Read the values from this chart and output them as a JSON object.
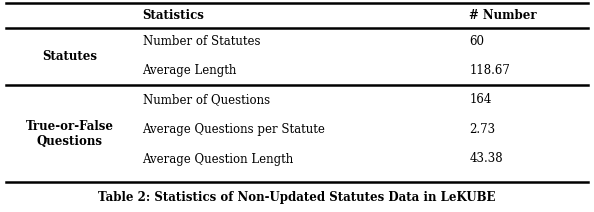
{
  "caption": "Table 2: Statistics of Non-Updated Statutes Data in LeKUBE",
  "col_headers": [
    "",
    "Statistics",
    "# Number"
  ],
  "sections": [
    {
      "row_label": "Statutes",
      "rows": [
        [
          "Number of Statutes",
          "60"
        ],
        [
          "Average Length",
          "118.67"
        ]
      ]
    },
    {
      "row_label": "True-or-False\nQuestions",
      "rows": [
        [
          "Number of Questions",
          "164"
        ],
        [
          "Average Questions per Statute",
          "2.73"
        ],
        [
          "Average Question Length",
          "43.38"
        ]
      ]
    }
  ],
  "bg_color": "#ffffff",
  "text_color": "#000000",
  "header_fontsize": 8.5,
  "body_fontsize": 8.5,
  "caption_fontsize": 8.5,
  "figsize": [
    5.94,
    2.12
  ],
  "dpi": 100
}
